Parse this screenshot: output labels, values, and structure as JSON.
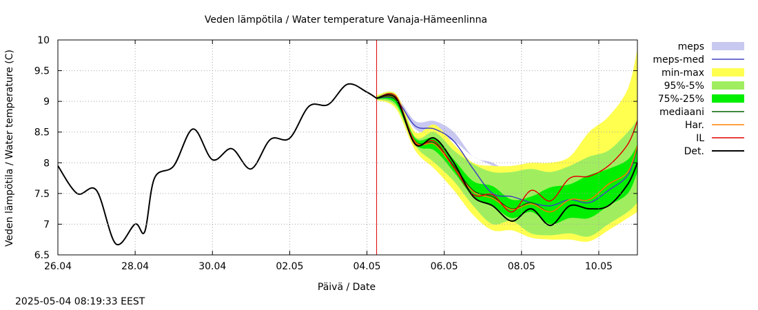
{
  "chart_data": {
    "type": "line",
    "title": "Veden lämpötila / Water temperature Vanaja-Hämeenlinna",
    "xlabel": "Päivä / Date",
    "ylabel": "Veden lämpötila / Water temperature (C)",
    "x_range": [
      "2025-04-26T00:00",
      "2025-05-11T00:00"
    ],
    "ylim": [
      6.5,
      10
    ],
    "y_ticks": [
      "6.5",
      "7",
      "7.5",
      "8",
      "8.5",
      "9",
      "9.5",
      "10"
    ],
    "x_ticks": [
      {
        "date": "2025-04-26T00:00",
        "label": "26.04"
      },
      {
        "date": "2025-04-28T00:00",
        "label": "28.04"
      },
      {
        "date": "2025-04-30T00:00",
        "label": "30.04"
      },
      {
        "date": "2025-05-02T00:00",
        "label": "02.05"
      },
      {
        "date": "2025-05-04T00:00",
        "label": "04.05"
      },
      {
        "date": "2025-05-06T00:00",
        "label": "06.05"
      },
      {
        "date": "2025-05-08T00:00",
        "label": "08.05"
      },
      {
        "date": "2025-05-10T00:00",
        "label": "10.05"
      }
    ],
    "grid": true,
    "legend_position": "right",
    "forecast_start": "2025-05-04T06:00",
    "forecast_line_color": "#e00000",
    "forecast_dates": [
      "2025-05-04T06:00",
      "2025-05-04T18:00",
      "2025-05-05T06:00",
      "2025-05-05T18:00",
      "2025-05-06T06:00",
      "2025-05-06T18:00",
      "2025-05-07T06:00",
      "2025-05-07T18:00",
      "2025-05-08T06:00",
      "2025-05-08T18:00",
      "2025-05-09T06:00",
      "2025-05-09T18:00",
      "2025-05-10T06:00",
      "2025-05-10T18:00",
      "2025-05-11T00:00"
    ],
    "observed": {
      "name": "Det.",
      "color": "#000000",
      "points": [
        [
          "2025-04-26T00:00",
          7.95
        ],
        [
          "2025-04-26T12:00",
          7.5
        ],
        [
          "2025-04-27T00:00",
          7.55
        ],
        [
          "2025-04-27T12:00",
          6.68
        ],
        [
          "2025-04-28T00:00",
          7.0
        ],
        [
          "2025-04-28T06:00",
          6.88
        ],
        [
          "2025-04-28T12:00",
          7.75
        ],
        [
          "2025-04-29T00:00",
          7.95
        ],
        [
          "2025-04-29T12:00",
          8.55
        ],
        [
          "2025-04-30T00:00",
          8.05
        ],
        [
          "2025-04-30T12:00",
          8.23
        ],
        [
          "2025-05-01T00:00",
          7.9
        ],
        [
          "2025-05-01T12:00",
          8.38
        ],
        [
          "2025-05-02T00:00",
          8.4
        ],
        [
          "2025-05-02T12:00",
          8.92
        ],
        [
          "2025-05-03T00:00",
          8.95
        ],
        [
          "2025-05-03T12:00",
          9.28
        ],
        [
          "2025-05-04T00:00",
          9.15
        ],
        [
          "2025-05-04T06:00",
          9.05
        ]
      ]
    },
    "bands": [
      {
        "name": "meps",
        "color": "#c8c8f0",
        "low": [
          9.05,
          9.0,
          8.55,
          8.45,
          8.35,
          8.1,
          7.95,
          7.75,
          7.55,
          7.45,
          7.55,
          7.45,
          7.65,
          7.9,
          8.3
        ],
        "high": [
          9.08,
          9.08,
          8.68,
          8.68,
          8.5,
          8.1,
          8.0,
          7.8,
          7.6,
          7.5,
          7.6,
          7.5,
          7.7,
          7.95,
          8.35
        ]
      },
      {
        "name": "min-max",
        "color": "#ffff50",
        "low": [
          9.02,
          8.88,
          8.2,
          7.9,
          7.55,
          7.15,
          6.9,
          6.9,
          6.78,
          6.75,
          6.75,
          6.72,
          6.9,
          7.1,
          7.2
        ],
        "high": [
          9.1,
          9.12,
          8.5,
          8.62,
          8.3,
          8.0,
          7.95,
          7.95,
          8.0,
          8.0,
          8.1,
          8.5,
          8.75,
          9.2,
          9.85
        ]
      },
      {
        "name": "95%-5%",
        "color": "#a0ee60",
        "low": [
          9.03,
          8.92,
          8.28,
          8.0,
          7.7,
          7.3,
          7.0,
          7.05,
          6.85,
          6.82,
          6.85,
          6.8,
          7.0,
          7.2,
          7.35
        ],
        "high": [
          9.08,
          9.1,
          8.42,
          8.5,
          8.2,
          7.98,
          7.85,
          7.85,
          7.9,
          7.85,
          7.95,
          8.1,
          8.2,
          8.5,
          8.7
        ]
      },
      {
        "name": "75%-25%",
        "color": "#00ee00",
        "low": [
          9.04,
          8.96,
          8.3,
          8.2,
          7.85,
          7.45,
          7.3,
          7.1,
          7.2,
          7.0,
          7.1,
          7.1,
          7.3,
          7.5,
          7.85
        ],
        "high": [
          9.07,
          9.07,
          8.4,
          8.4,
          8.05,
          7.7,
          7.62,
          7.4,
          7.45,
          7.6,
          7.65,
          7.8,
          7.9,
          8.05,
          8.3
        ]
      }
    ],
    "lines": [
      {
        "name": "meps-med",
        "color": "#4040c0",
        "values": [
          9.05,
          9.03,
          8.6,
          8.55,
          8.35,
          7.9,
          7.5,
          7.45,
          7.35,
          7.3,
          7.4,
          7.35,
          7.55,
          7.8,
          8.25
        ]
      },
      {
        "name": "mediaani",
        "color": "#006000",
        "values": [
          9.05,
          9.02,
          8.35,
          8.32,
          7.95,
          7.55,
          7.45,
          7.25,
          7.35,
          7.2,
          7.4,
          7.4,
          7.65,
          7.85,
          8.25
        ]
      },
      {
        "name": "Har.",
        "color": "#ff8000",
        "values": [
          9.05,
          9.04,
          8.34,
          8.3,
          7.92,
          7.53,
          7.42,
          7.24,
          7.33,
          7.2,
          7.4,
          7.4,
          7.65,
          7.85,
          8.28
        ]
      },
      {
        "name": "IL",
        "color": "#e00000",
        "values": [
          9.05,
          9.08,
          8.32,
          8.35,
          7.92,
          7.48,
          7.48,
          7.2,
          7.55,
          7.38,
          7.75,
          7.78,
          7.95,
          8.3,
          8.68
        ]
      },
      {
        "name": "Det.",
        "color": "#000000",
        "values": [
          9.05,
          9.05,
          8.3,
          8.4,
          8.0,
          7.45,
          7.3,
          7.05,
          7.25,
          6.98,
          7.3,
          7.25,
          7.3,
          7.65,
          8.0
        ]
      }
    ],
    "legend": [
      {
        "label": "meps",
        "color": "#c8c8f0",
        "kind": "box"
      },
      {
        "label": "meps-med",
        "color": "#4040c0",
        "kind": "line"
      },
      {
        "label": "min-max",
        "color": "#ffff50",
        "kind": "box"
      },
      {
        "label": "95%-5%",
        "color": "#a0ee60",
        "kind": "box"
      },
      {
        "label": "75%-25%",
        "color": "#00ee00",
        "kind": "box"
      },
      {
        "label": "mediaani",
        "color": "#006000",
        "kind": "line"
      },
      {
        "label": "Har.",
        "color": "#ff8000",
        "kind": "line"
      },
      {
        "label": "IL",
        "color": "#e00000",
        "kind": "line"
      },
      {
        "label": "Det.",
        "color": "#000000",
        "kind": "line"
      }
    ]
  },
  "footer": {
    "timestamp": "2025-05-04 08:19:33 EEST"
  }
}
